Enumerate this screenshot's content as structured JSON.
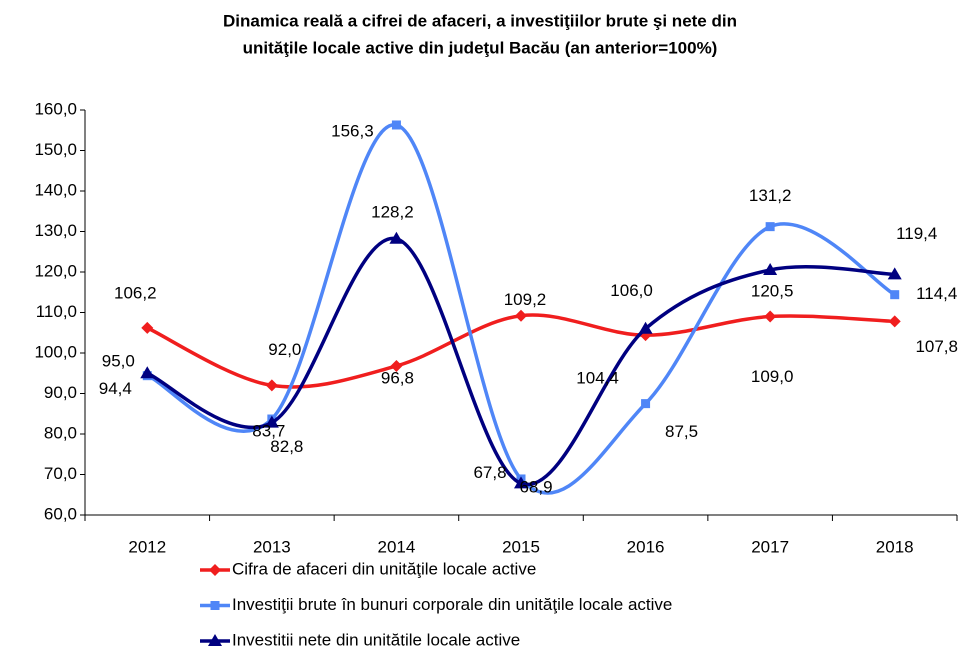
{
  "chart_data": {
    "type": "line",
    "title": [
      "Dinamica reală a cifrei de afaceri, a investiţiilor brute şi nete din",
      "unităţile locale active din judeţul Bacău (an anterior=100%)"
    ],
    "categories": [
      "2012",
      "2013",
      "2014",
      "2015",
      "2016",
      "2017",
      "2018"
    ],
    "series": [
      {
        "name": "Cifra de afaceri din unităţile locale active",
        "color": "#f01e1e",
        "marker": "diamond",
        "values": [
          106.2,
          92.0,
          96.8,
          109.2,
          104.4,
          109.0,
          107.8
        ],
        "value_labels": [
          "106,2",
          "92,0",
          "96,8",
          "109,2",
          "104,4",
          "109,0",
          "107,8"
        ]
      },
      {
        "name": "Investiţii brute în bunuri corporale din unităţile locale active",
        "color": "#4f86f7",
        "marker": "square",
        "values": [
          94.4,
          83.7,
          156.3,
          68.9,
          87.5,
          131.2,
          114.4
        ],
        "value_labels": [
          "94,4",
          "83,7",
          "156,3",
          "68,9",
          "87,5",
          "131,2",
          "114,4"
        ]
      },
      {
        "name": "Investiţii nete din unităţile locale active",
        "color": "#000080",
        "marker": "triangle",
        "values": [
          95.0,
          82.8,
          128.2,
          67.8,
          106.0,
          120.5,
          119.4
        ],
        "value_labels": [
          "95,0",
          "82,8",
          "128,2",
          "67,8",
          "106,0",
          "120,5",
          "119,4"
        ]
      }
    ],
    "ylim": [
      60,
      160
    ],
    "yticks": [
      {
        "value": 60,
        "label": "60,0"
      },
      {
        "value": 70,
        "label": "70,0"
      },
      {
        "value": 80,
        "label": "80,0"
      },
      {
        "value": 90,
        "label": "90,0"
      },
      {
        "value": 100,
        "label": "100,0"
      },
      {
        "value": 110,
        "label": "110,0"
      },
      {
        "value": 120,
        "label": "120,0"
      },
      {
        "value": 130,
        "label": "130,0"
      },
      {
        "value": 140,
        "label": "140,0"
      },
      {
        "value": 150,
        "label": "150,0"
      },
      {
        "value": 160,
        "label": "160,0"
      }
    ],
    "smooth": true,
    "legend": "bottom"
  }
}
